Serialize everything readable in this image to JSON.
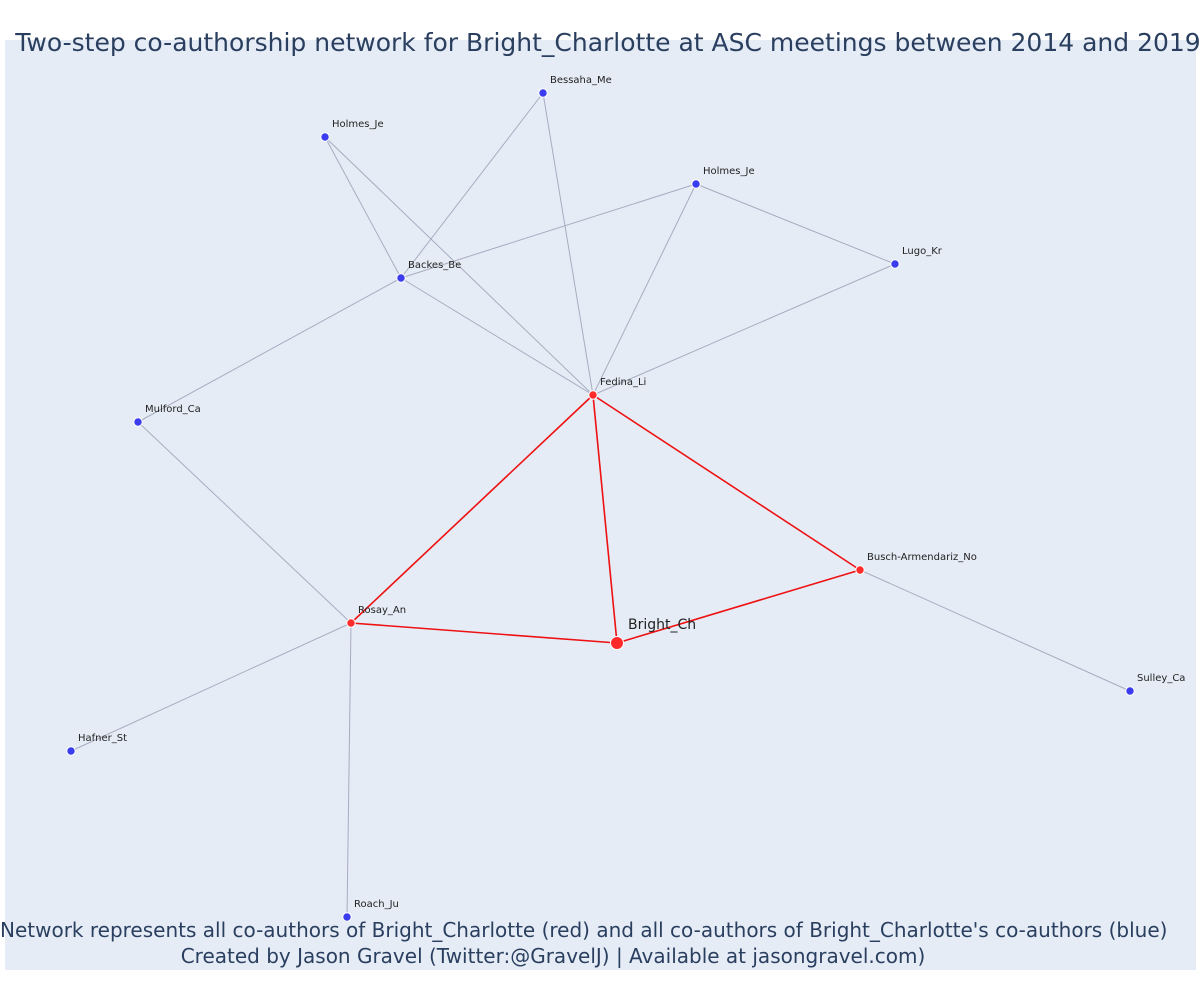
{
  "title": "Two-step co-authorship network for Bright_Charlotte at ASC meetings between 2014 and 2019",
  "caption": {
    "line1": "Network represents all co-authors of Bright_Charlotte (red) and all co-authors of Bright_Charlotte's co-authors (blue)",
    "line2": "Created by Jason Gravel (Twitter:@GravelJ) | Available at jasongravel.com)"
  },
  "colors": {
    "background": "#e5ecf6",
    "first_degree_node": "#ff2a2a",
    "second_degree_node": "#3b3bf0",
    "first_degree_edge": "#ee1111",
    "second_degree_edge": "#a8acc0"
  },
  "nodes": [
    {
      "id": "Bright_Ch",
      "label": "Bright_Ch",
      "group": "focal"
    },
    {
      "id": "Fedina_Li",
      "label": "Fedina_Li",
      "group": "coauthor"
    },
    {
      "id": "Rosay_An",
      "label": "Rosay_An",
      "group": "coauthor"
    },
    {
      "id": "Busch-Armendariz_No",
      "label": "Busch-Armendariz_No",
      "group": "coauthor"
    },
    {
      "id": "Bessaha_Me",
      "label": "Bessaha_Me",
      "group": "second"
    },
    {
      "id": "Holmes_Je_1",
      "label": "Holmes_Je",
      "group": "second"
    },
    {
      "id": "Holmes_Je_2",
      "label": "Holmes_Je",
      "group": "second"
    },
    {
      "id": "Lugo_Kr",
      "label": "Lugo_Kr",
      "group": "second"
    },
    {
      "id": "Backes_Be",
      "label": "Backes_Be",
      "group": "second"
    },
    {
      "id": "Mulford_Ca",
      "label": "Mulford_Ca",
      "group": "second"
    },
    {
      "id": "Sulley_Ca",
      "label": "Sulley_Ca",
      "group": "second"
    },
    {
      "id": "Hafner_St",
      "label": "Hafner_St",
      "group": "second"
    },
    {
      "id": "Roach_Ju",
      "label": "Roach_Ju",
      "group": "second"
    }
  ],
  "edges": [
    {
      "source": "Bright_Ch",
      "target": "Fedina_Li",
      "type": "first"
    },
    {
      "source": "Bright_Ch",
      "target": "Rosay_An",
      "type": "first"
    },
    {
      "source": "Bright_Ch",
      "target": "Busch-Armendariz_No",
      "type": "first"
    },
    {
      "source": "Fedina_Li",
      "target": "Rosay_An",
      "type": "first"
    },
    {
      "source": "Fedina_Li",
      "target": "Busch-Armendariz_No",
      "type": "first"
    },
    {
      "source": "Fedina_Li",
      "target": "Bessaha_Me",
      "type": "second"
    },
    {
      "source": "Fedina_Li",
      "target": "Holmes_Je_1",
      "type": "second"
    },
    {
      "source": "Fedina_Li",
      "target": "Holmes_Je_2",
      "type": "second"
    },
    {
      "source": "Fedina_Li",
      "target": "Backes_Be",
      "type": "second"
    },
    {
      "source": "Fedina_Li",
      "target": "Lugo_Kr",
      "type": "second"
    },
    {
      "source": "Backes_Be",
      "target": "Holmes_Je_1",
      "type": "second"
    },
    {
      "source": "Backes_Be",
      "target": "Bessaha_Me",
      "type": "second"
    },
    {
      "source": "Backes_Be",
      "target": "Holmes_Je_2",
      "type": "second"
    },
    {
      "source": "Backes_Be",
      "target": "Mulford_Ca",
      "type": "second"
    },
    {
      "source": "Holmes_Je_2",
      "target": "Lugo_Kr",
      "type": "second"
    },
    {
      "source": "Mulford_Ca",
      "target": "Rosay_An",
      "type": "second"
    },
    {
      "source": "Rosay_An",
      "target": "Hafner_St",
      "type": "second"
    },
    {
      "source": "Rosay_An",
      "target": "Roach_Ju",
      "type": "second"
    },
    {
      "source": "Busch-Armendariz_No",
      "target": "Sulley_Ca",
      "type": "second"
    }
  ]
}
